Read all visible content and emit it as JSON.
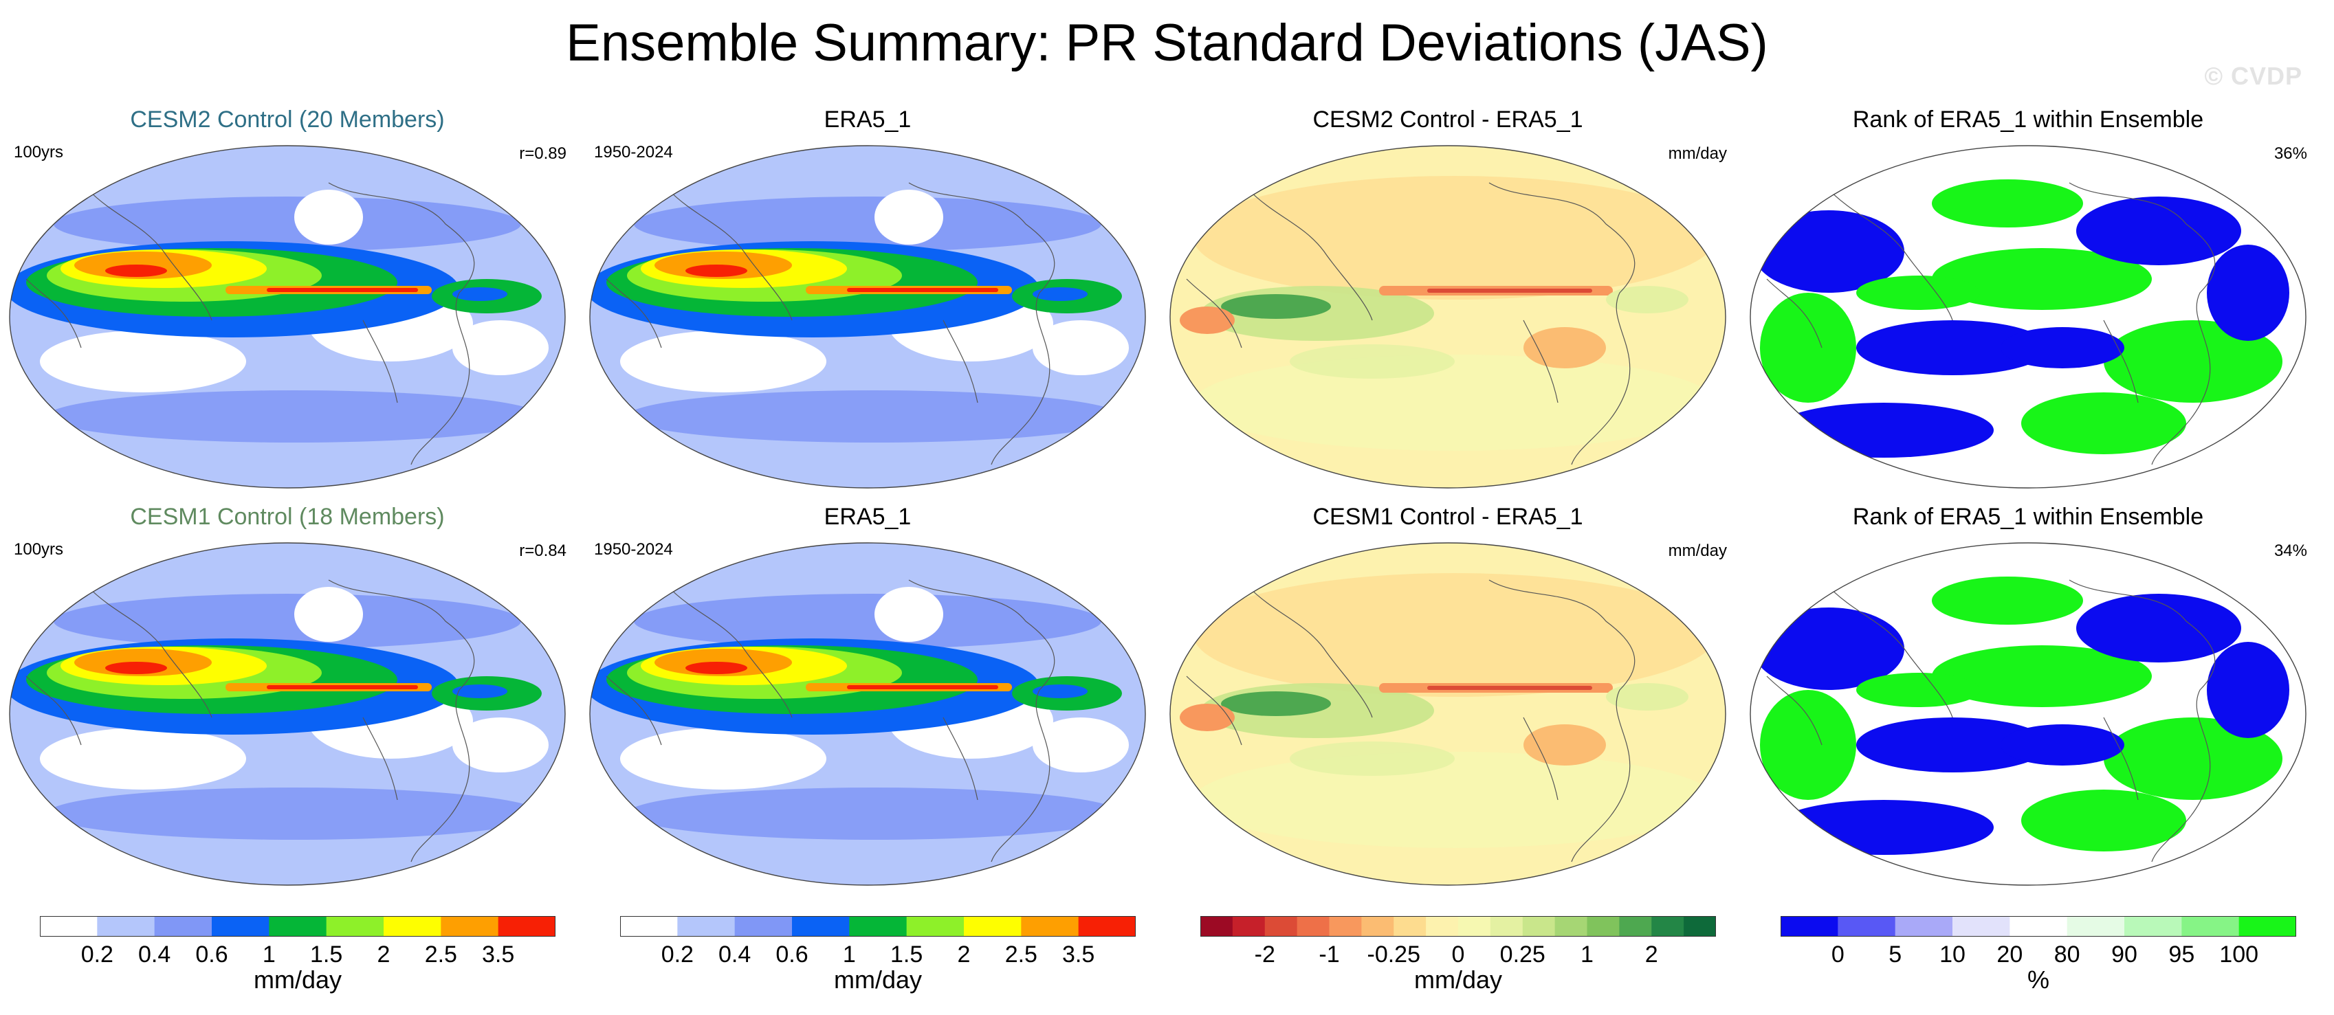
{
  "figure": {
    "title": "Ensemble Summary: PR Standard Deviations (JAS)",
    "watermark": "© CVDP"
  },
  "chart_data": [
    {
      "type": "heatmap",
      "title": "CESM2 Control (20 Members)",
      "title_color": "#2e6f86",
      "left_label": "100yrs",
      "right_label": "r=0.89",
      "field": "PR standard deviation (ensemble mean)",
      "units": "mm/day",
      "colorbar": "std"
    },
    {
      "type": "heatmap",
      "title": "ERA5_1",
      "title_color": "#000000",
      "left_label": "1950-2024",
      "right_label": "",
      "field": "PR standard deviation (observed)",
      "units": "mm/day",
      "colorbar": "std"
    },
    {
      "type": "heatmap",
      "title": "CESM2 Control - ERA5_1",
      "title_color": "#000000",
      "left_label": "",
      "right_label": "mm/day",
      "field": "PR standard deviation difference",
      "units": "mm/day",
      "colorbar": "diff"
    },
    {
      "type": "heatmap",
      "title": "Rank of ERA5_1 within Ensemble",
      "title_color": "#000000",
      "left_label": "",
      "right_label": "36%",
      "field": "Rank of observation within ensemble",
      "units": "%",
      "colorbar": "rank"
    },
    {
      "type": "heatmap",
      "title": "CESM1 Control (18 Members)",
      "title_color": "#5f8a5f",
      "left_label": "100yrs",
      "right_label": "r=0.84",
      "field": "PR standard deviation (ensemble mean)",
      "units": "mm/day",
      "colorbar": "std"
    },
    {
      "type": "heatmap",
      "title": "ERA5_1",
      "title_color": "#000000",
      "left_label": "1950-2024",
      "right_label": "",
      "field": "PR standard deviation (observed)",
      "units": "mm/day",
      "colorbar": "std"
    },
    {
      "type": "heatmap",
      "title": "CESM1 Control - ERA5_1",
      "title_color": "#000000",
      "left_label": "",
      "right_label": "mm/day",
      "field": "PR standard deviation difference",
      "units": "mm/day",
      "colorbar": "diff"
    },
    {
      "type": "heatmap",
      "title": "Rank of ERA5_1 within Ensemble",
      "title_color": "#000000",
      "left_label": "",
      "right_label": "34%",
      "field": "Rank of observation within ensemble",
      "units": "%",
      "colorbar": "rank"
    }
  ],
  "colorbars": {
    "std": {
      "units": "mm/day",
      "colors": [
        "#ffffff",
        "#b4c6fb",
        "#8097f6",
        "#0a62f5",
        "#05b637",
        "#8ef029",
        "#fefe00",
        "#fe9f01",
        "#f72005"
      ],
      "tick_labels": [
        "0.2",
        "0.4",
        "0.6",
        "1",
        "1.5",
        "2",
        "2.5",
        "3.5"
      ]
    },
    "diff": {
      "units": "mm/day",
      "colors": [
        "#9c0a24",
        "#c6202a",
        "#dc4b36",
        "#ee7048",
        "#f8985d",
        "#fbbc72",
        "#fddc8f",
        "#fdf2ae",
        "#f6f8b1",
        "#e4f1a2",
        "#c9e68b",
        "#a6d674",
        "#80c35c",
        "#4ea850",
        "#238646",
        "#0e6a3a"
      ],
      "tick_labels": [
        "-2",
        "-1",
        "-0.25",
        "0",
        "0.25",
        "1",
        "2"
      ]
    },
    "rank": {
      "units": "%",
      "colors": [
        "#0b0bf0",
        "#5858f5",
        "#a9a9f8",
        "#e2e2fb",
        "#ffffff",
        "#e5fbe5",
        "#b9f9b9",
        "#86f486",
        "#18f518"
      ],
      "tick_labels": [
        "0",
        "5",
        "10",
        "20",
        "80",
        "90",
        "95",
        "100"
      ]
    }
  }
}
